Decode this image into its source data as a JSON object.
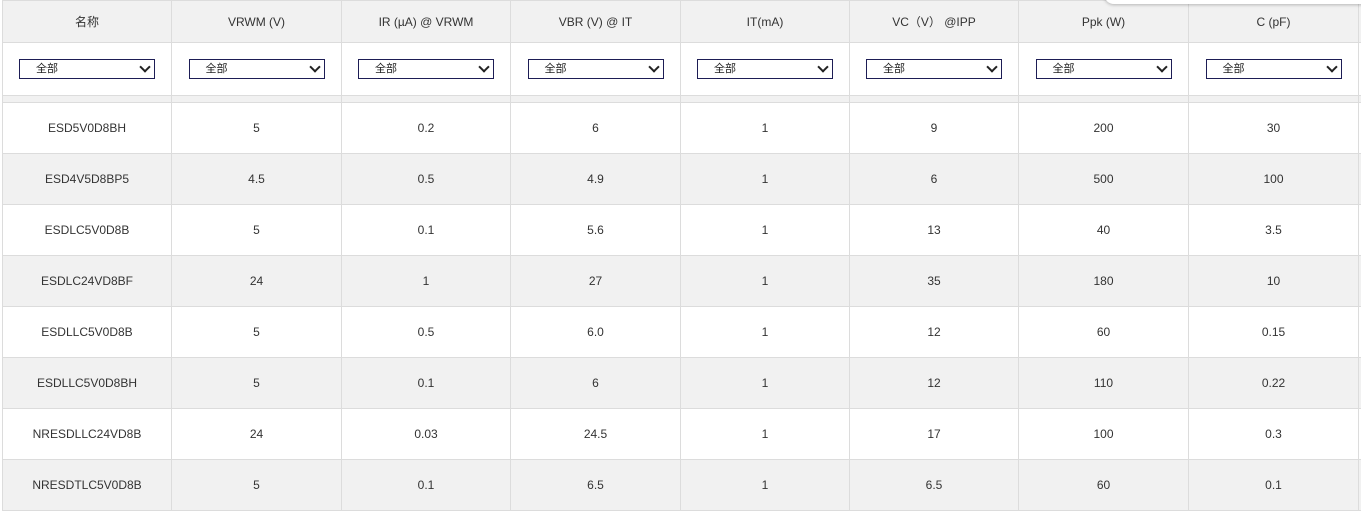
{
  "columns": [
    "名称",
    "VRWM (V)",
    "IR (µA) @ VRWM",
    "VBR (V) @ IT",
    "IT(mA)",
    "VC（V） @IPP",
    "Ppk (W)",
    "C (pF)"
  ],
  "filter_value": "全部",
  "rows": [
    [
      "ESD5V0D8BH",
      "5",
      "0.2",
      "6",
      "1",
      "9",
      "200",
      "30"
    ],
    [
      "ESD4V5D8BP5",
      "4.5",
      "0.5",
      "4.9",
      "1",
      "6",
      "500",
      "100"
    ],
    [
      "ESDLC5V0D8B",
      "5",
      "0.1",
      "5.6",
      "1",
      "13",
      "40",
      "3.5"
    ],
    [
      "ESDLC24VD8BF",
      "24",
      "1",
      "27",
      "1",
      "35",
      "180",
      "10"
    ],
    [
      "ESDLLC5V0D8B",
      "5",
      "0.5",
      "6.0",
      "1",
      "12",
      "60",
      "0.15"
    ],
    [
      "ESDLLC5V0D8BH",
      "5",
      "0.1",
      "6",
      "1",
      "12",
      "110",
      "0.22"
    ],
    [
      "NRESDLLC24VD8B",
      "24",
      "0.03",
      "24.5",
      "1",
      "17",
      "100",
      "0.3"
    ],
    [
      "NRESDTLC5V0D8B",
      "5",
      "0.1",
      "6.5",
      "1",
      "6.5",
      "60",
      "0.1"
    ]
  ],
  "colors": {
    "header_bg": "#f1f1f1",
    "border": "#dcdcdc",
    "select_border": "#1d1d55"
  }
}
